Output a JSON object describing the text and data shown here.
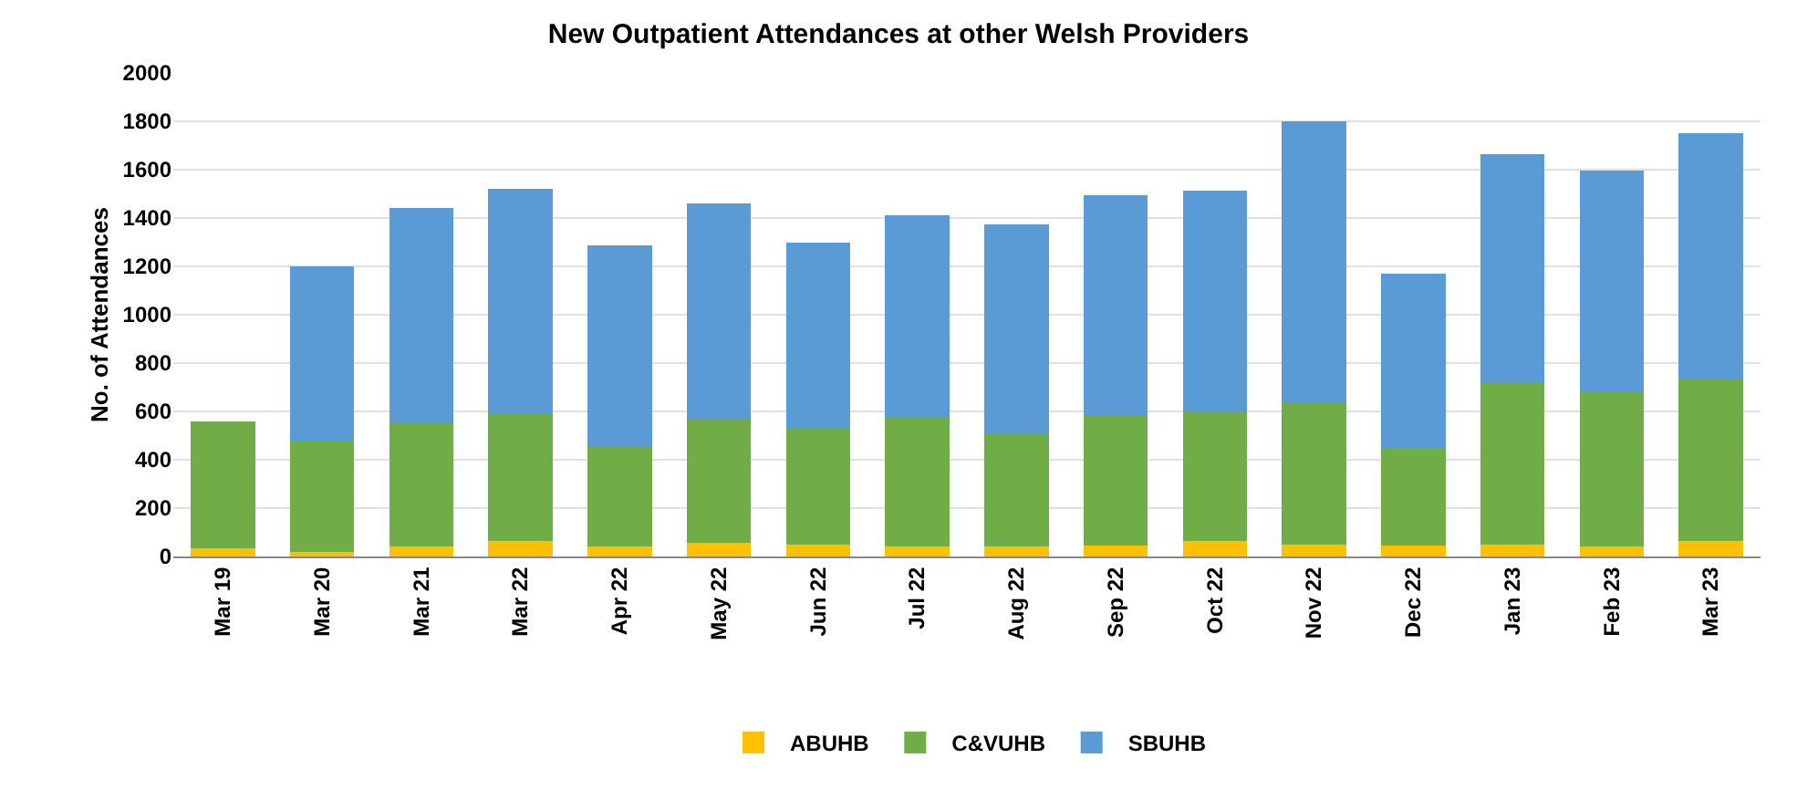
{
  "chart_data": {
    "type": "bar",
    "stacked": true,
    "title": "New Outpatient Attendances at other Welsh Providers",
    "ylabel": "No. of Attendances",
    "categories": [
      "Mar 19",
      "Mar 20",
      "Mar 21",
      "Mar 22",
      "Apr 22",
      "May 22",
      "Jun 22",
      "Jul 22",
      "Aug 22",
      "Sep 22",
      "Oct 22",
      "Nov 22",
      "Dec 22",
      "Jan 23",
      "Feb 23",
      "Mar 23"
    ],
    "series": [
      {
        "name": "ABUHB",
        "color": "#ffc000",
        "values": [
          35,
          20,
          40,
          65,
          40,
          55,
          50,
          40,
          40,
          45,
          65,
          50,
          45,
          50,
          40,
          65
        ]
      },
      {
        "name": "C&VUHB",
        "color": "#70ad47",
        "values": [
          525,
          455,
          515,
          525,
          415,
          515,
          480,
          535,
          465,
          540,
          535,
          585,
          400,
          670,
          640,
          670
        ]
      },
      {
        "name": "SBUHB",
        "color": "#5b9bd5",
        "values": [
          null,
          725,
          885,
          930,
          830,
          890,
          770,
          835,
          870,
          910,
          915,
          1165,
          725,
          945,
          915,
          1015
        ]
      }
    ],
    "ylim": [
      0,
      2000
    ],
    "yticks": [
      0,
      200,
      400,
      600,
      800,
      1000,
      1200,
      1400,
      1600,
      1800,
      2000
    ],
    "grid": "y",
    "legend": "bottom"
  }
}
